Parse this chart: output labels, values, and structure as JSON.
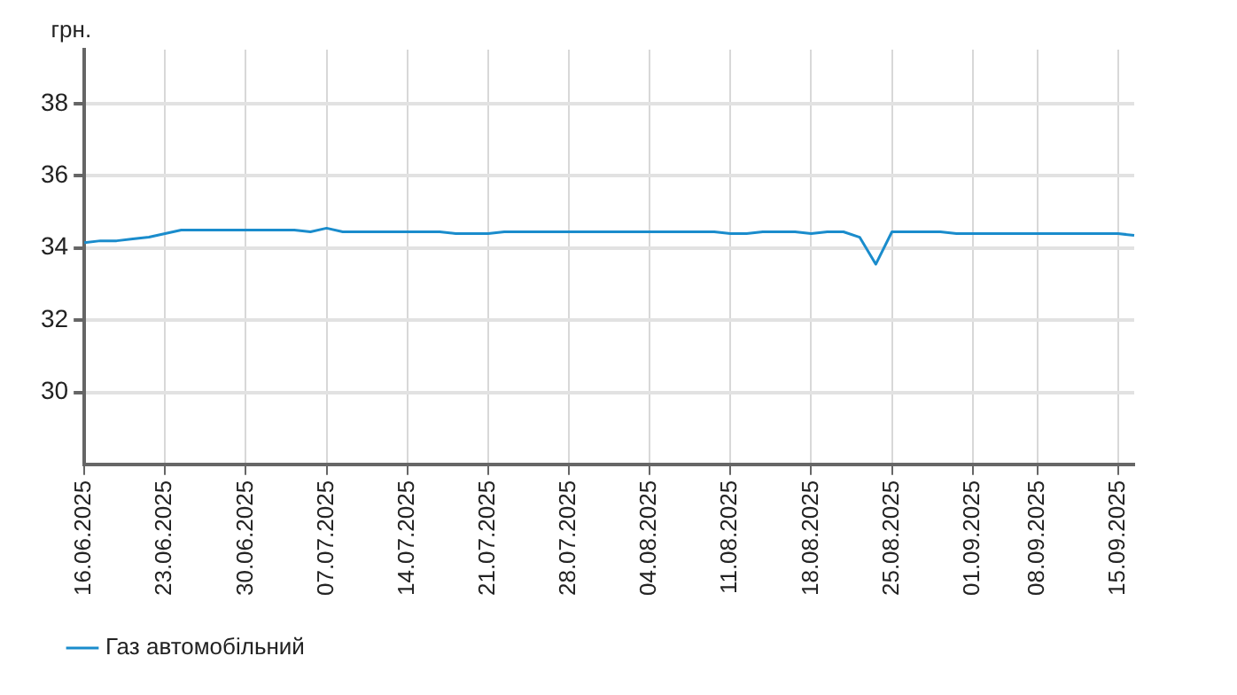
{
  "chart_data": {
    "type": "line",
    "ylabel": "грн.",
    "categories": [
      "16.06.2025",
      null,
      null,
      null,
      null,
      "23.06.2025",
      null,
      null,
      null,
      null,
      "30.06.2025",
      null,
      null,
      null,
      null,
      "07.07.2025",
      null,
      null,
      null,
      null,
      "14.07.2025",
      null,
      null,
      null,
      null,
      "21.07.2025",
      null,
      null,
      null,
      null,
      "28.07.2025",
      null,
      null,
      null,
      null,
      "04.08.2025",
      null,
      null,
      null,
      null,
      "11.08.2025",
      null,
      null,
      null,
      null,
      "18.08.2025",
      null,
      null,
      null,
      null,
      "25.08.2025",
      null,
      null,
      null,
      null,
      "01.09.2025",
      null,
      null,
      null,
      "08.09.2025",
      null,
      null,
      null,
      null,
      "15.09.2025",
      null
    ],
    "series": [
      {
        "name": "Газ автомобільний",
        "color": "#1a8ccc",
        "values": [
          34.15,
          34.2,
          34.2,
          34.25,
          34.3,
          34.4,
          34.5,
          34.5,
          34.5,
          34.5,
          34.5,
          34.5,
          34.5,
          34.5,
          34.45,
          34.55,
          34.45,
          34.45,
          34.45,
          34.45,
          34.45,
          34.45,
          34.45,
          34.4,
          34.4,
          34.4,
          34.45,
          34.45,
          34.45,
          34.45,
          34.45,
          34.45,
          34.45,
          34.45,
          34.45,
          34.45,
          34.45,
          34.45,
          34.45,
          34.45,
          34.4,
          34.4,
          34.45,
          34.45,
          34.45,
          34.4,
          34.45,
          34.45,
          34.3,
          33.55,
          34.45,
          34.45,
          34.45,
          34.45,
          34.4,
          34.4,
          34.4,
          34.4,
          34.4,
          34.4,
          34.4,
          34.4,
          34.4,
          34.4,
          34.4,
          34.35
        ]
      }
    ],
    "ylim": [
      28,
      39.5
    ],
    "yticks": [
      30,
      32,
      34,
      36,
      38
    ],
    "grid": true,
    "legend": "bottom left",
    "marker": "none",
    "line_style": "solid"
  }
}
